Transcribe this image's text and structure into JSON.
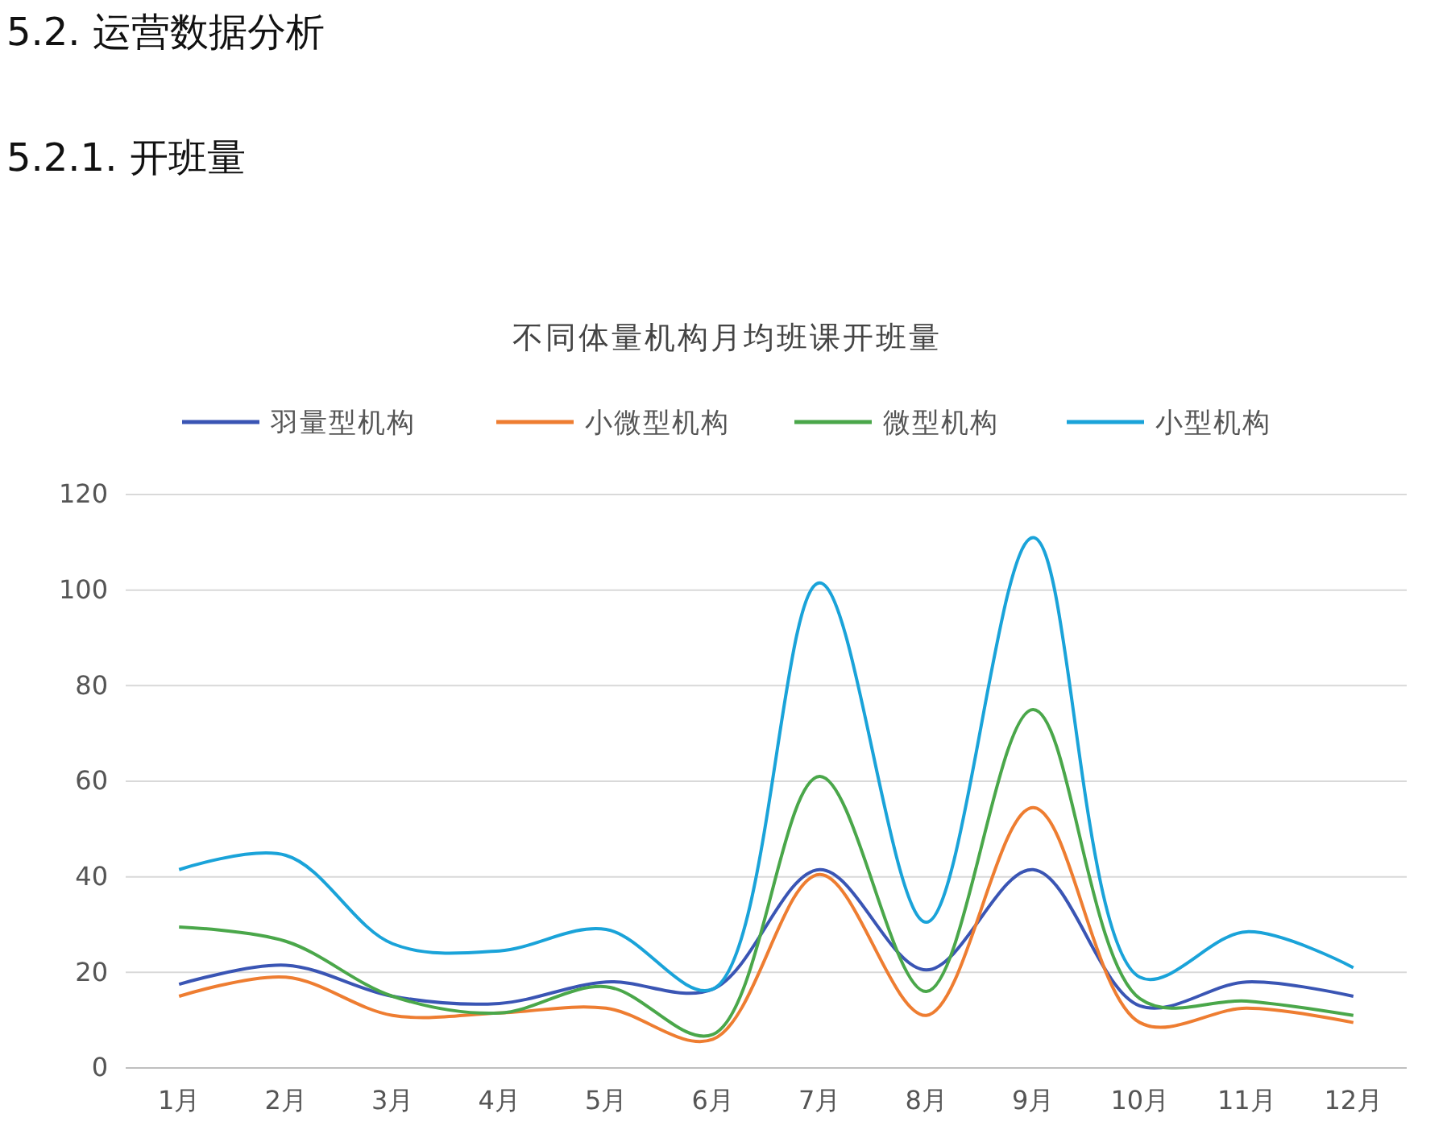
{
  "chart_data": {
    "type": "line",
    "title": "不同体量机构月均班课开班量",
    "annotations": [
      "5.2.  运营数据分析",
      "5.2.1.  开班量"
    ],
    "categories": [
      "1月",
      "2月",
      "3月",
      "4月",
      "5月",
      "6月",
      "7月",
      "8月",
      "9月",
      "10月",
      "11月",
      "12月"
    ],
    "series": [
      {
        "name": "羽量型机构",
        "color": "#3a55b4",
        "values": [
          17.5,
          21.5,
          15,
          13.5,
          18,
          16.5,
          41.5,
          20.5,
          41.5,
          13,
          18,
          15
        ]
      },
      {
        "name": "小微型机构",
        "color": "#ee7d31",
        "values": [
          15,
          19,
          11,
          11.5,
          12.5,
          6,
          40.5,
          11,
          54.5,
          9.5,
          12.5,
          9.5
        ]
      },
      {
        "name": "微型机构",
        "color": "#4aa74a",
        "values": [
          29.5,
          26.5,
          15,
          11.5,
          17,
          7,
          61,
          16,
          75,
          14.5,
          14,
          11
        ]
      },
      {
        "name": "小型机构",
        "color": "#1aa3d9",
        "values": [
          41.5,
          44.5,
          26,
          24.5,
          29,
          16.5,
          101.5,
          30.5,
          111,
          19,
          28.5,
          21
        ]
      }
    ],
    "ylim": [
      0,
      120
    ],
    "yticks": [
      0,
      20,
      40,
      60,
      80,
      100,
      120
    ],
    "grid": "y",
    "legend": "top",
    "marker": "none",
    "line_style": "solid"
  }
}
